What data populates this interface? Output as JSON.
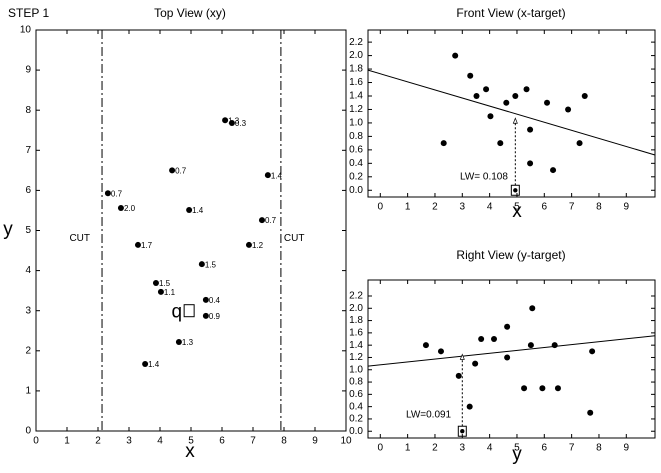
{
  "title": "STEP 1",
  "chart_data": [
    {
      "type": "scatter",
      "title": "Top View (xy)",
      "x_label": "x",
      "y_label": "y",
      "xlim": [
        0,
        10
      ],
      "ylim": [
        0,
        10
      ],
      "xticks": [
        0,
        1,
        2,
        3,
        4,
        5,
        6,
        7,
        8,
        9,
        10
      ],
      "yticks": [
        0,
        1,
        2,
        3,
        4,
        5,
        6,
        7,
        8,
        9,
        10
      ],
      "x": [
        6.1,
        6.32,
        4.39,
        7.48,
        2.32,
        2.74,
        4.94,
        7.29,
        3.29,
        6.87,
        5.35,
        3.87,
        4.03,
        5.48,
        5.48,
        4.61,
        3.52
      ],
      "y": [
        7.75,
        7.68,
        6.5,
        6.38,
        5.93,
        5.56,
        5.51,
        5.26,
        4.64,
        4.64,
        4.16,
        3.69,
        3.47,
        3.27,
        2.87,
        2.22,
        1.67
      ],
      "point_labels": [
        "1.3",
        "0.3",
        "0.7",
        "1.4",
        "0.7",
        "2.0",
        "1.4",
        "0.7",
        "1.7",
        "1.2",
        "1.5",
        "1.5",
        "1.1",
        "0.4",
        "0.9",
        "1.3",
        "1.4"
      ],
      "cuts": [
        2.13,
        7.9
      ],
      "cut_labels": [
        "CUT",
        "CUT"
      ],
      "query": {
        "label": "q",
        "x": 4.94,
        "y": 3.0
      },
      "color": "#000000"
    },
    {
      "type": "scatter",
      "title": "Front View (x-target)",
      "x_label": "x",
      "xlim": [
        -0.45,
        10.05
      ],
      "ylim": [
        -0.1,
        2.38
      ],
      "xticks": [
        0,
        1,
        2,
        3,
        4,
        5,
        6,
        7,
        8,
        9
      ],
      "yticks": [
        {
          "value": 0,
          "label": "0.0"
        },
        0.2,
        0.4,
        0.6,
        0.8,
        {
          "value": 1,
          "label": "1.0"
        },
        1.2,
        1.4,
        1.6,
        1.8,
        {
          "value": 2,
          "label": "2.0"
        },
        2.2
      ],
      "x": [
        6.1,
        6.32,
        4.39,
        7.48,
        2.32,
        2.74,
        4.94,
        7.29,
        3.29,
        6.87,
        5.35,
        3.87,
        4.03,
        5.48,
        5.48,
        4.61,
        3.52
      ],
      "values": [
        1.3,
        0.3,
        0.7,
        1.4,
        0.7,
        2.0,
        1.4,
        0.7,
        1.7,
        1.2,
        1.5,
        1.5,
        1.1,
        0.4,
        0.9,
        1.3,
        1.4
      ],
      "fit": {
        "intercept": 1.73,
        "slope": -0.12
      },
      "query_x": 4.94,
      "prediction": 1.07,
      "annotation": "LW= 0.108",
      "color": "#000000"
    },
    {
      "type": "scatter",
      "title": "Right View (y-target)",
      "x_label": "y",
      "xlim": [
        -0.45,
        10.05
      ],
      "ylim": [
        -0.11,
        2.46
      ],
      "xticks": [
        0,
        1,
        2,
        3,
        4,
        5,
        6,
        7,
        8,
        9
      ],
      "yticks": [
        {
          "value": 0,
          "label": "0.0"
        },
        0.2,
        0.4,
        0.6,
        0.8,
        {
          "value": 1,
          "label": "1.0"
        },
        1.2,
        1.4,
        1.6,
        1.8,
        {
          "value": 2,
          "label": "2.0"
        },
        2.2
      ],
      "x": [
        7.75,
        7.68,
        6.5,
        6.38,
        5.93,
        5.56,
        5.51,
        5.26,
        4.64,
        4.64,
        4.16,
        3.69,
        3.47,
        3.27,
        2.87,
        2.22,
        1.67
      ],
      "values": [
        1.3,
        0.3,
        0.7,
        1.4,
        0.7,
        2.0,
        1.4,
        0.7,
        1.7,
        1.2,
        1.5,
        1.5,
        1.1,
        0.4,
        0.9,
        1.3,
        1.4
      ],
      "fit": {
        "intercept": 1.08,
        "slope": 0.047
      },
      "query_x": 3.0,
      "prediction": 1.25,
      "annotation": "LW=0.091",
      "color": "#000000"
    }
  ]
}
